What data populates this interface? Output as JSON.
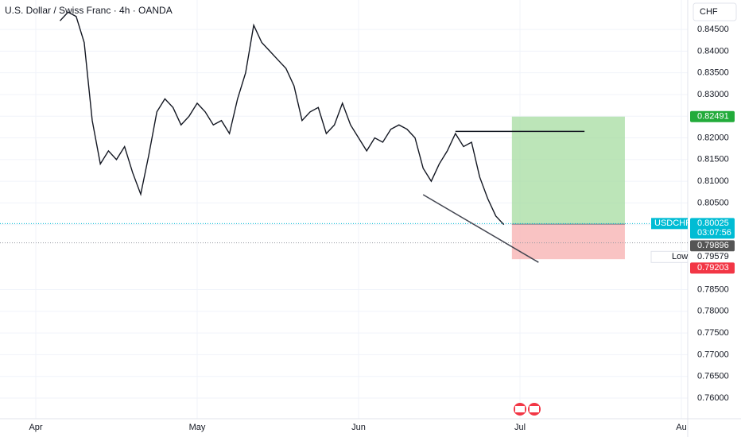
{
  "chart_data": {
    "type": "line",
    "title": "U.S. Dollar / Swiss Franc · 4h · OANDA",
    "currency": "CHF",
    "color": "#131722",
    "categories": [
      "Apr",
      null,
      null,
      null,
      null,
      null,
      null,
      null,
      null,
      null,
      null,
      null,
      null,
      null,
      null,
      null,
      null,
      null,
      null,
      null,
      "May",
      null,
      null,
      null,
      null,
      null,
      null,
      null,
      null,
      null,
      null,
      null,
      null,
      null,
      null,
      null,
      null,
      null,
      null,
      null,
      "Jun",
      null,
      null,
      null,
      null,
      null,
      null,
      null,
      null,
      null,
      null,
      null,
      null,
      null,
      null,
      null,
      null,
      null,
      null,
      null,
      "Jul",
      null,
      null,
      null,
      null,
      null,
      null,
      null,
      null,
      null,
      null,
      null,
      null,
      null,
      null,
      null,
      null,
      null,
      null,
      null,
      "Au"
    ],
    "values": [
      null,
      null,
      null,
      0.847,
      0.849,
      0.848,
      0.842,
      0.824,
      0.814,
      0.817,
      0.815,
      0.818,
      0.812,
      0.807,
      0.816,
      0.826,
      0.829,
      0.827,
      0.823,
      0.825,
      0.828,
      0.826,
      0.823,
      0.824,
      0.821,
      0.829,
      0.835,
      0.846,
      0.842,
      0.84,
      0.838,
      0.836,
      0.832,
      0.824,
      0.826,
      0.827,
      0.821,
      0.823,
      0.828,
      0.823,
      0.82,
      0.817,
      0.82,
      0.819,
      0.822,
      0.823,
      0.822,
      0.82,
      0.813,
      0.81,
      0.814,
      0.817,
      0.821,
      0.818,
      0.819,
      0.811,
      0.806,
      0.802,
      0.8,
      null,
      null,
      null,
      null,
      null,
      null,
      null,
      null,
      null,
      null,
      null,
      null,
      null,
      null,
      null,
      null,
      null,
      null,
      null,
      null,
      null,
      null
    ],
    "ylim": [
      0.7556,
      0.8518
    ],
    "yticks": [
      {
        "value": 0.845,
        "label": "0.84500"
      },
      {
        "value": 0.84,
        "label": "0.84000"
      },
      {
        "value": 0.835,
        "label": "0.83500"
      },
      {
        "value": 0.83,
        "label": "0.83000"
      },
      {
        "value": 0.825,
        "label": "0.82500"
      },
      {
        "value": 0.82,
        "label": "0.82000"
      },
      {
        "value": 0.815,
        "label": "0.81500"
      },
      {
        "value": 0.81,
        "label": "0.81000"
      },
      {
        "value": 0.805,
        "label": "0.80500"
      },
      {
        "value": 0.8,
        "label": "0.80000"
      },
      {
        "value": 0.785,
        "label": "0.78500"
      },
      {
        "value": 0.78,
        "label": "0.78000"
      },
      {
        "value": 0.775,
        "label": "0.77500"
      },
      {
        "value": 0.77,
        "label": "0.77000"
      },
      {
        "value": 0.765,
        "label": "0.76500"
      },
      {
        "value": 0.76,
        "label": "0.76000"
      }
    ],
    "markers": [
      {
        "value": 0.82491,
        "color": "#22ab3a"
      },
      {
        "name": "USDCHF",
        "value": 0.80025,
        "countdown": "03:07:56",
        "color": "#00bcd4"
      },
      {
        "value": 0.79896,
        "color": "#555555"
      },
      {
        "name": "Low",
        "value": 0.79579,
        "color": "#ffffff"
      },
      {
        "value": 0.79203,
        "color": "#f23645"
      }
    ],
    "position": {
      "entry": 0.8001,
      "x_start": 59,
      "x_end": 73
    },
    "horizontal_line": {
      "value": 0.8215,
      "x_start": 52,
      "x_end": 68
    },
    "trend_line": {
      "x": [
        48,
        62.3
      ],
      "y": [
        0.8069,
        0.7913
      ]
    }
  }
}
